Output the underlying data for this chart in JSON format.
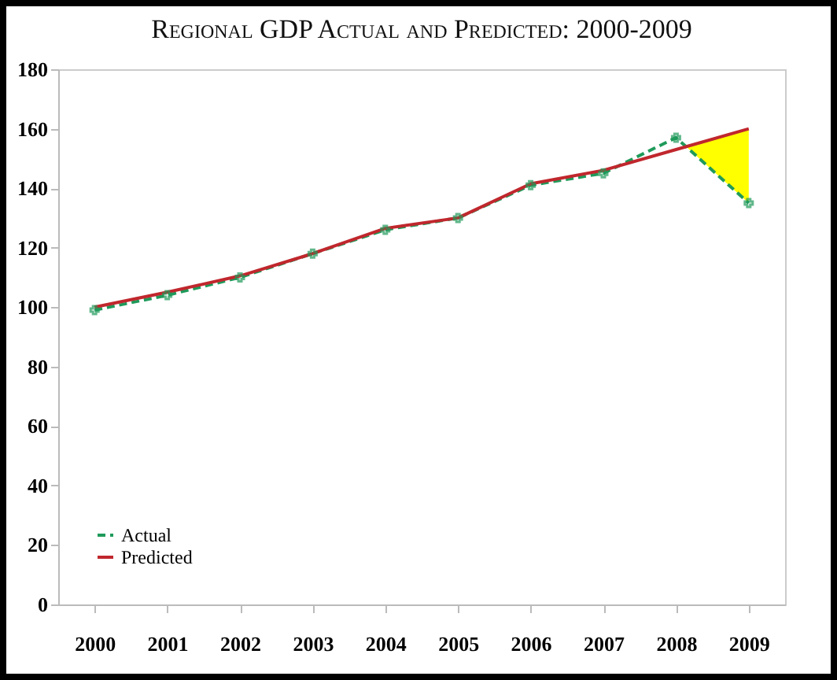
{
  "chart_data": {
    "type": "line",
    "title": "Regional GDP Actual and Predicted: 2000-2009",
    "categories": [
      "2000",
      "2001",
      "2002",
      "2003",
      "2004",
      "2005",
      "2006",
      "2007",
      "2008",
      "2009"
    ],
    "series": [
      {
        "name": "Actual",
        "color": "#1f9a5a",
        "line_style": "dashed",
        "marker": "cross",
        "values": [
          99,
          104,
          110,
          118,
          126,
          130,
          141,
          145,
          157,
          135
        ]
      },
      {
        "name": "Predicted",
        "color": "#c0272d",
        "line_style": "solid",
        "marker": "none",
        "values": [
          100,
          105,
          110.5,
          118,
          126.5,
          130,
          141.5,
          146,
          153,
          160
        ]
      }
    ],
    "ylim": [
      0,
      180
    ],
    "yticks": [
      0,
      20,
      40,
      60,
      80,
      100,
      120,
      140,
      160,
      180
    ],
    "grid": false,
    "legend": "bottom left"
  }
}
